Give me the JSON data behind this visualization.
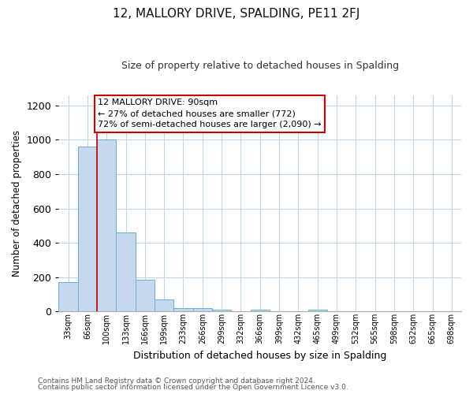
{
  "title": "12, MALLORY DRIVE, SPALDING, PE11 2FJ",
  "subtitle": "Size of property relative to detached houses in Spalding",
  "xlabel": "Distribution of detached houses by size in Spalding",
  "ylabel": "Number of detached properties",
  "bar_labels": [
    "33sqm",
    "66sqm",
    "100sqm",
    "133sqm",
    "166sqm",
    "199sqm",
    "233sqm",
    "266sqm",
    "299sqm",
    "332sqm",
    "366sqm",
    "399sqm",
    "432sqm",
    "465sqm",
    "499sqm",
    "532sqm",
    "565sqm",
    "598sqm",
    "632sqm",
    "665sqm",
    "698sqm"
  ],
  "bar_values": [
    170,
    960,
    1000,
    460,
    185,
    70,
    22,
    18,
    12,
    0,
    10,
    0,
    0,
    10,
    0,
    0,
    0,
    0,
    0,
    0,
    0
  ],
  "bar_color": "#c5d8ed",
  "bar_edge_color": "#6baed6",
  "ylim": [
    0,
    1260
  ],
  "yticks": [
    0,
    200,
    400,
    600,
    800,
    1000,
    1200
  ],
  "marker_line_color": "#bb0000",
  "annotation_title": "12 MALLORY DRIVE: 90sqm",
  "annotation_line1": "← 27% of detached houses are smaller (772)",
  "annotation_line2": "72% of semi-detached houses are larger (2,090) →",
  "annotation_box_color": "#ffffff",
  "annotation_box_edge": "#cc0000",
  "footer1": "Contains HM Land Registry data © Crown copyright and database right 2024.",
  "footer2": "Contains public sector information licensed under the Open Government Licence v3.0.",
  "bg_color": "#ffffff",
  "grid_color": "#c8d4e8"
}
